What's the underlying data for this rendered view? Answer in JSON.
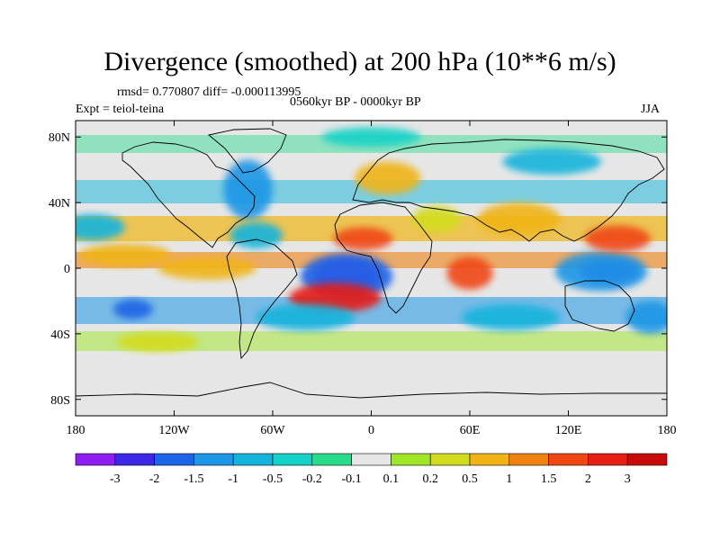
{
  "title": "Divergence (smoothed) at 200 hPa (10**6 m/s)",
  "stats": "rmsd= 0.770807 diff= -0.000113995",
  "period": "0560kyr BP - 0000kyr BP",
  "experiment": "Expt = teiol-teina",
  "season": "JJA",
  "lat_ticks": [
    "80N",
    "40N",
    "0",
    "40S",
    "80S"
  ],
  "lat_values": [
    80,
    40,
    0,
    -40,
    -80
  ],
  "lon_ticks": [
    "180",
    "120W",
    "60W",
    "0",
    "60E",
    "120E",
    "180"
  ],
  "lon_values": [
    -180,
    -120,
    -60,
    0,
    60,
    120,
    180
  ],
  "colorbar": {
    "labels": [
      "-3",
      "-2",
      "-1.5",
      "-1",
      "-0.5",
      "-0.2",
      "-0.1",
      "0.1",
      "0.2",
      "0.5",
      "1",
      "1.5",
      "2",
      "3"
    ],
    "colors": [
      "#8f1ef0",
      "#3c28e6",
      "#1e64e6",
      "#1e96e6",
      "#14b4dc",
      "#14d2c8",
      "#28dc8c",
      "#e6e6e6",
      "#a0e628",
      "#d2dc1e",
      "#f0b414",
      "#f08214",
      "#f04614",
      "#e61e14",
      "#c80a0a"
    ]
  },
  "anomalies": [
    {
      "lon": -15,
      "lat": -5,
      "rx": 20,
      "ry": 10,
      "level": 0
    },
    {
      "lon": -15,
      "lat": -5,
      "rx": 28,
      "ry": 14,
      "level": 2
    },
    {
      "lon": 145,
      "lat": -2,
      "rx": 18,
      "ry": 7,
      "level": 1
    },
    {
      "lon": 140,
      "lat": -2,
      "rx": 28,
      "ry": 12,
      "level": 3
    },
    {
      "lon": -22,
      "lat": -18,
      "rx": 28,
      "ry": 9,
      "level": 13
    },
    {
      "lon": -5,
      "lat": 18,
      "rx": 18,
      "ry": 7,
      "level": 12
    },
    {
      "lon": 60,
      "lat": -3,
      "rx": 14,
      "ry": 10,
      "level": 12
    },
    {
      "lon": 150,
      "lat": 18,
      "rx": 20,
      "ry": 8,
      "level": 12
    },
    {
      "lon": -145,
      "lat": -25,
      "rx": 12,
      "ry": 6,
      "level": 2
    },
    {
      "lon": -75,
      "lat": 48,
      "rx": 15,
      "ry": 18,
      "level": 3
    },
    {
      "lon": -150,
      "lat": 8,
      "rx": 28,
      "ry": 7,
      "level": 10
    },
    {
      "lon": -100,
      "lat": 0,
      "rx": 30,
      "ry": 7,
      "level": 10
    },
    {
      "lon": -70,
      "lat": 20,
      "rx": 16,
      "ry": 8,
      "level": 4
    },
    {
      "lon": 10,
      "lat": 55,
      "rx": 20,
      "ry": 10,
      "level": 10
    },
    {
      "lon": 90,
      "lat": 30,
      "rx": 25,
      "ry": 10,
      "level": 10
    },
    {
      "lon": 85,
      "lat": -30,
      "rx": 30,
      "ry": 8,
      "level": 4
    },
    {
      "lon": -40,
      "lat": -30,
      "rx": 30,
      "ry": 8,
      "level": 4
    },
    {
      "lon": -170,
      "lat": 25,
      "rx": 20,
      "ry": 8,
      "level": 4
    },
    {
      "lon": 0,
      "lat": 80,
      "rx": 30,
      "ry": 6,
      "level": 5
    },
    {
      "lon": 110,
      "lat": 65,
      "rx": 30,
      "ry": 8,
      "level": 4
    },
    {
      "lon": 170,
      "lat": -30,
      "rx": 15,
      "ry": 10,
      "level": 3
    },
    {
      "lon": -130,
      "lat": -45,
      "rx": 25,
      "ry": 6,
      "level": 9
    },
    {
      "lon": 40,
      "lat": 30,
      "rx": 15,
      "ry": 8,
      "level": 9
    },
    {
      "lon": -60,
      "lat": -60,
      "rx": 30,
      "ry": 6,
      "level": 7
    }
  ]
}
